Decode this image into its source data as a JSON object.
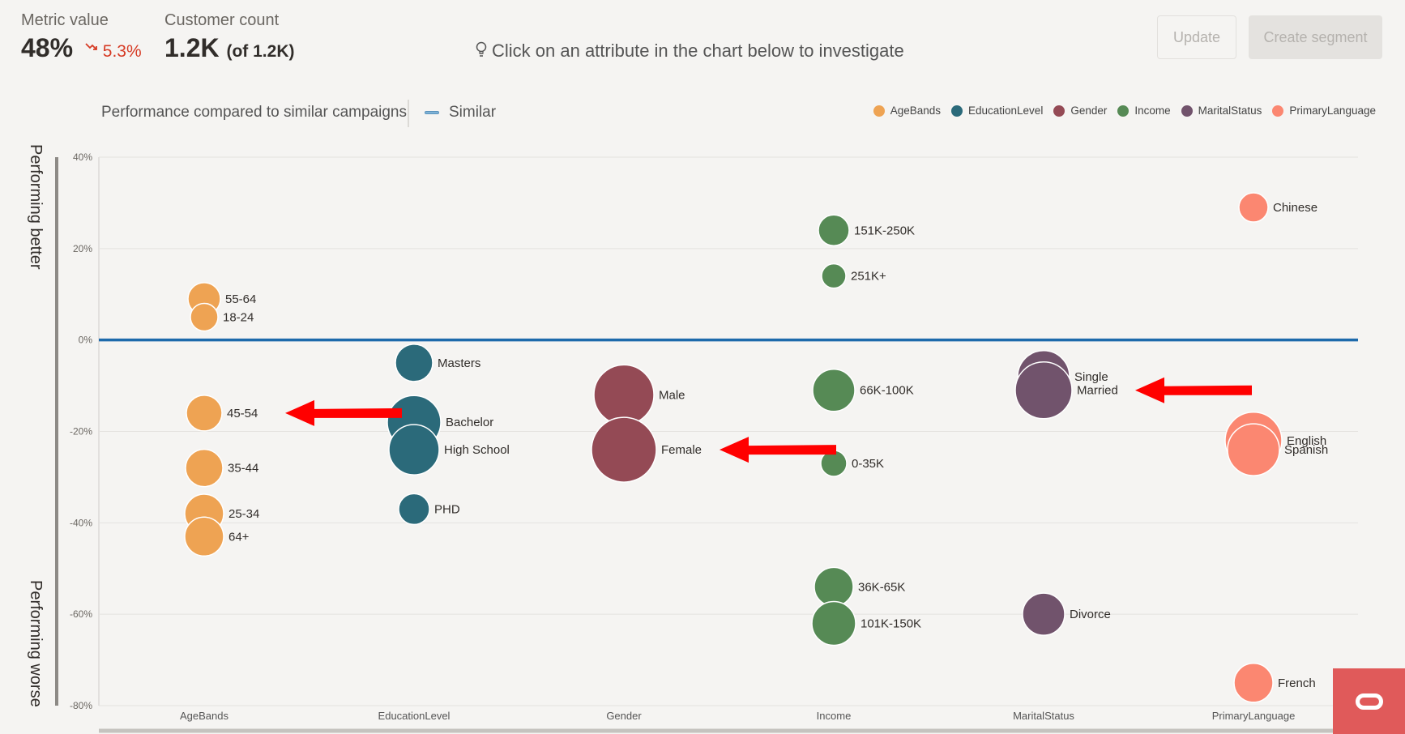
{
  "header": {
    "metric_label": "Metric value",
    "metric_value": "48%",
    "metric_delta": "5.3%",
    "customer_label": "Customer count",
    "customer_value": "1.2K",
    "customer_of": "(of 1.2K)",
    "hint": "Click on an attribute in the chart below to investigate",
    "update_label": "Update",
    "segment_label": "Create segment"
  },
  "toolbar": {
    "title": "Performance compared to similar campaigns",
    "similar_label": "Similar"
  },
  "colors": {
    "AgeBands": "#eea353",
    "EducationLevel": "#2b6a7a",
    "Gender": "#944a55",
    "Income": "#568a55",
    "MaritalStatus": "#71536c",
    "PrimaryLanguage": "#fb8771",
    "baseline": "#1d6aab",
    "arrow": "#ff0000"
  },
  "chart_data": {
    "type": "scatter",
    "categories": [
      "AgeBands",
      "EducationLevel",
      "Gender",
      "Income",
      "MaritalStatus",
      "PrimaryLanguage"
    ],
    "ylim": [
      -80,
      40
    ],
    "yticks": [
      "40%",
      "20%",
      "0%",
      "-20%",
      "-40%",
      "-60%",
      "-80%"
    ],
    "y_top_label": "Performing better",
    "y_bottom_label": "Performing worse",
    "baseline": 0,
    "points": [
      {
        "category": "AgeBands",
        "label": "55-64",
        "y": 9,
        "r": 20
      },
      {
        "category": "AgeBands",
        "label": "18-24",
        "y": 5,
        "r": 17
      },
      {
        "category": "AgeBands",
        "label": "45-54",
        "y": -16,
        "r": 22
      },
      {
        "category": "AgeBands",
        "label": "35-44",
        "y": -28,
        "r": 23
      },
      {
        "category": "AgeBands",
        "label": "25-34",
        "y": -38,
        "r": 24
      },
      {
        "category": "AgeBands",
        "label": "64+",
        "y": -43,
        "r": 24
      },
      {
        "category": "EducationLevel",
        "label": "Masters",
        "y": -5,
        "r": 23
      },
      {
        "category": "EducationLevel",
        "label": "Bachelor",
        "y": -18,
        "r": 33
      },
      {
        "category": "EducationLevel",
        "label": "High School",
        "y": -24,
        "r": 31
      },
      {
        "category": "EducationLevel",
        "label": "PHD",
        "y": -37,
        "r": 19
      },
      {
        "category": "Gender",
        "label": "Male",
        "y": -12,
        "r": 37
      },
      {
        "category": "Gender",
        "label": "Female",
        "y": -24,
        "r": 40
      },
      {
        "category": "Income",
        "label": "151K-250K",
        "y": 24,
        "r": 19
      },
      {
        "category": "Income",
        "label": "251K+",
        "y": 14,
        "r": 15
      },
      {
        "category": "Income",
        "label": "66K-100K",
        "y": -11,
        "r": 26
      },
      {
        "category": "Income",
        "label": "0-35K",
        "y": -27,
        "r": 16
      },
      {
        "category": "Income",
        "label": "36K-65K",
        "y": -54,
        "r": 24
      },
      {
        "category": "Income",
        "label": "101K-150K",
        "y": -62,
        "r": 27
      },
      {
        "category": "MaritalStatus",
        "label": "Single",
        "y": -8,
        "r": 32
      },
      {
        "category": "MaritalStatus",
        "label": "Married",
        "y": -11,
        "r": 35
      },
      {
        "category": "MaritalStatus",
        "label": "Divorce",
        "y": -60,
        "r": 26
      },
      {
        "category": "PrimaryLanguage",
        "label": "Chinese",
        "y": 29,
        "r": 18
      },
      {
        "category": "PrimaryLanguage",
        "label": "English",
        "y": -22,
        "r": 35
      },
      {
        "category": "PrimaryLanguage",
        "label": "Spanish",
        "y": -24,
        "r": 32
      },
      {
        "category": "PrimaryLanguage",
        "label": "French",
        "y": -75,
        "r": 24
      }
    ]
  }
}
